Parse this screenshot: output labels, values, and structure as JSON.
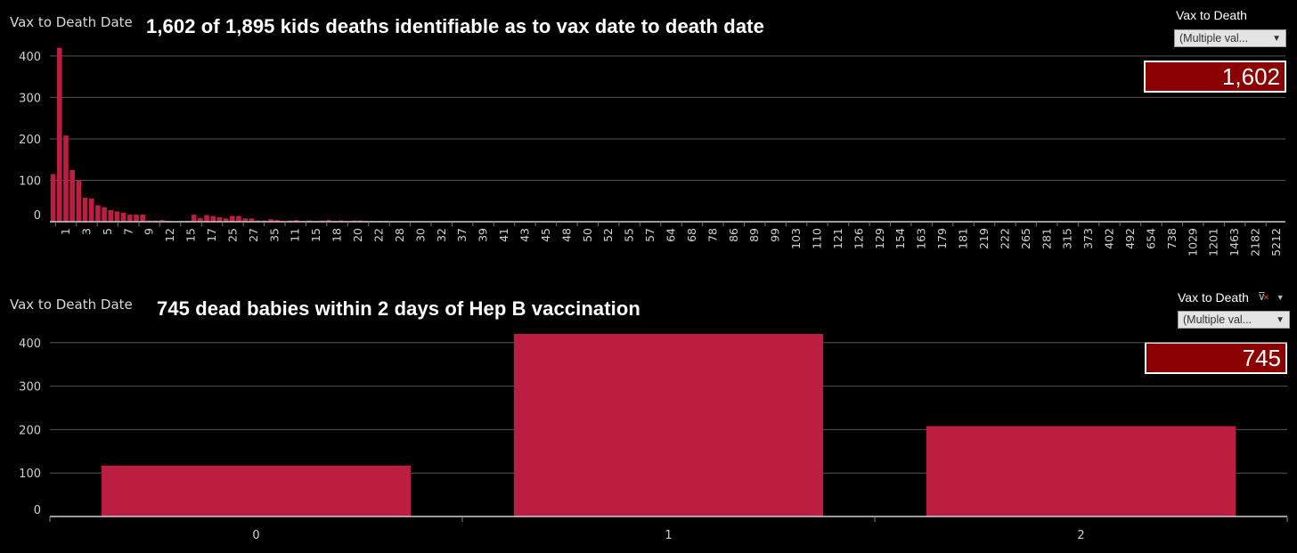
{
  "colors": {
    "bar": "#bb1e41",
    "kpi_bg": "#8b0000",
    "grid": "#555555",
    "axis": "#d0d0d0",
    "background": "#000000"
  },
  "top_panel": {
    "axis_caption": "Vax to Death Date",
    "headline": "1,602 of 1,895 kids deaths identifiable as to vax date to death date",
    "filter_label": "Vax to Death",
    "dropdown_value": "(Multiple val...",
    "dropdown_icon": "chevron-down-icon",
    "kpi_value": "1,602"
  },
  "bottom_panel": {
    "axis_caption": "Vax to Death Date",
    "headline": "745 dead babies within 2 days of Hep B vaccination",
    "filter_label": "Vax to Death",
    "filter_icons": [
      "clear-filter-icon",
      "menu-arrow-icon"
    ],
    "dropdown_value": "(Multiple val...",
    "dropdown_icon": "chevron-down-icon",
    "kpi_value": "745"
  },
  "chart_data": [
    {
      "type": "bar",
      "y_ticks": [
        "0",
        "100",
        "200",
        "300",
        "400"
      ],
      "ylim": [
        0,
        460
      ],
      "grid": true,
      "tick_labels": [
        "1",
        "3",
        "5",
        "7",
        "9",
        "12",
        "15",
        "17",
        "25",
        "27",
        "35",
        "11",
        "15",
        "18",
        "20",
        "22",
        "28",
        "30",
        "32",
        "37",
        "39",
        "41",
        "43",
        "45",
        "48",
        "50",
        "52",
        "55",
        "57",
        "64",
        "68",
        "78",
        "86",
        "89",
        "99",
        "103",
        "110",
        "121",
        "126",
        "129",
        "154",
        "163",
        "179",
        "181",
        "219",
        "222",
        "265",
        "281",
        "315",
        "373",
        "402",
        "492",
        "654",
        "738",
        "1029",
        "1201",
        "1463",
        "2182",
        "5212"
      ],
      "values": [
        115,
        420,
        208,
        125,
        100,
        58,
        56,
        40,
        35,
        28,
        25,
        22,
        17,
        17,
        17,
        3,
        3,
        4,
        2,
        1,
        2,
        2,
        17,
        9,
        16,
        14,
        11,
        8,
        14,
        14,
        8,
        8,
        3,
        3,
        6,
        4,
        2,
        3,
        4,
        2,
        3,
        2,
        3,
        4,
        2,
        3,
        2,
        3,
        3,
        2,
        2,
        2,
        2,
        1,
        1,
        1,
        1,
        1,
        1,
        1,
        1,
        1,
        1,
        1,
        1,
        1,
        1,
        1,
        1,
        1,
        1,
        1,
        1,
        1,
        1,
        1,
        1,
        1,
        1,
        1,
        1,
        1,
        1,
        1,
        1,
        1,
        1,
        1,
        1,
        1,
        1,
        1,
        1,
        1,
        1,
        1,
        1,
        1,
        1,
        1,
        1,
        1,
        1,
        1,
        1,
        1,
        1,
        1,
        1,
        1,
        1,
        1,
        1,
        1,
        1,
        1,
        1,
        1,
        1,
        1,
        1,
        1,
        1,
        1,
        1,
        1,
        1,
        1,
        1,
        1,
        1,
        1,
        1,
        1,
        1,
        1,
        1,
        1,
        1,
        1,
        1,
        1,
        1,
        1,
        1,
        1,
        1,
        1,
        1,
        1,
        1,
        1,
        1,
        1,
        1,
        1,
        1,
        1,
        1,
        1,
        1,
        1,
        1,
        1,
        1,
        1,
        1,
        1,
        1,
        1,
        1,
        1,
        1,
        1,
        1,
        1,
        1,
        1,
        1,
        1,
        1,
        1,
        1,
        1,
        1,
        1,
        1,
        1,
        1,
        1,
        1,
        1,
        1
      ]
    },
    {
      "type": "bar",
      "categories": [
        "0",
        "1",
        "2"
      ],
      "values": [
        117,
        420,
        208
      ],
      "y_ticks": [
        "0",
        "100",
        "200",
        "300",
        "400"
      ],
      "ylim": [
        0,
        420
      ],
      "grid": true
    }
  ]
}
